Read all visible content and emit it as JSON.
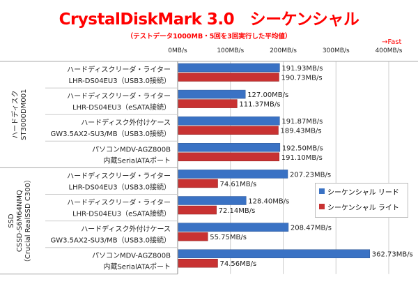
{
  "chart_data": {
    "type": "bar",
    "orientation": "horizontal",
    "title": "CrystalDiskMark 3.0　シーケンシャル",
    "subtitle": "（テストデータ1000MB・5回を3回実行した平均値）",
    "annotation": "→Fast",
    "xlim": [
      0,
      400
    ],
    "xticks": [
      "0MB/s",
      "100MB/s",
      "200MB/s",
      "300MB/s",
      "400MB/s"
    ],
    "groups": [
      {
        "label": "ハードディスク",
        "sublabel": "ST3000DM001",
        "sublabel2": ""
      },
      {
        "label": "SSD",
        "sublabel": "CSSD-S6M64NMQ",
        "sublabel2": "（Crucial RealSSD C300）"
      }
    ],
    "categories": [
      {
        "line1": "ハードディスクリーダ・ライター",
        "line2": "LHR-DS04EU3（USB3.0接続）",
        "group": 0
      },
      {
        "line1": "ハードディスクリーダ・ライター",
        "line2": "LHR-DS04EU3（eSATA接続）",
        "group": 0
      },
      {
        "line1": "ハードディスク外付けケース",
        "line2": "GW3.5AX2-SU3/MB（USB3.0接続）",
        "group": 0
      },
      {
        "line1": "パソコンMDV-AGZ800B",
        "line2": "内蔵SerialATAポート",
        "group": 0
      },
      {
        "line1": "ハードディスクリーダ・ライター",
        "line2": "LHR-DS04EU3（USB3.0接続）",
        "group": 1
      },
      {
        "line1": "ハードディスクリーダ・ライター",
        "line2": "LHR-DS04EU3（eSATA接続）",
        "group": 1
      },
      {
        "line1": "ハードディスク外付けケース",
        "line2": "GW3.5AX2-SU3/MB（USB3.0接続）",
        "group": 1
      },
      {
        "line1": "パソコンMDV-AGZ800B",
        "line2": "内蔵SerialATAポート",
        "group": 1
      }
    ],
    "series": [
      {
        "name": "シーケンシャル リード",
        "color": "#3a72c4",
        "values": [
          191.93,
          127.0,
          191.87,
          192.5,
          207.23,
          128.4,
          208.47,
          362.73
        ]
      },
      {
        "name": "シーケンシャル ライト",
        "color": "#c83232",
        "values": [
          190.73,
          111.37,
          189.43,
          191.1,
          74.61,
          72.14,
          55.75,
          74.56
        ]
      }
    ],
    "unit": "MB/s",
    "legend": "right"
  }
}
